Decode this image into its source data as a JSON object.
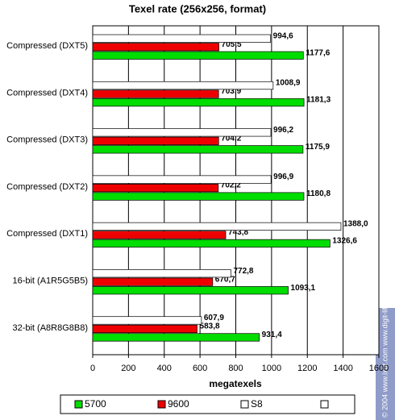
{
  "chart_data": {
    "type": "bar",
    "orientation": "horizontal",
    "title": "Texel rate (256x256, format)",
    "xlabel": "megatexels",
    "watermark": "© 2004 www.ixbt.com  www.digit-life.com",
    "categories": [
      "Compressed (DXT5)",
      "Compressed (DXT4)",
      "Compressed (DXT3)",
      "Compressed (DXT2)",
      "Compressed (DXT1)",
      "16-bit (A1R5G5B5)",
      "32-bit (A8R8G8B8)"
    ],
    "series": [
      {
        "name": "5700",
        "color": "#00dd00",
        "values": [
          1177.6,
          1181.3,
          1175.9,
          1180.8,
          1326.6,
          1093.1,
          931.4
        ],
        "value_labels": [
          "1177,6",
          "1181,3",
          "1175,9",
          "1180,8",
          "1326,6",
          "1093,1",
          "931,4"
        ]
      },
      {
        "name": "9600",
        "color": "#ee0000",
        "values": [
          705.5,
          703.9,
          704.2,
          702.2,
          743.8,
          670.7,
          583.8
        ],
        "value_labels": [
          "705,5",
          "703,9",
          "704,2",
          "702,2",
          "743,8",
          "670,7",
          "583,8"
        ]
      },
      {
        "name": "S8",
        "color": "#ffffff",
        "values": [
          994.6,
          1008.9,
          996.2,
          996.9,
          1388.0,
          772.8,
          607.9
        ],
        "value_labels": [
          "994,6",
          "1008,9",
          "996,2",
          "996,9",
          "1388,0",
          "772,8",
          "607,9"
        ]
      }
    ],
    "xlim": [
      0,
      1600
    ],
    "xticks": [
      0,
      200,
      400,
      600,
      800,
      1000,
      1200,
      1400,
      1600
    ],
    "grid": true,
    "legend": "bottom"
  }
}
